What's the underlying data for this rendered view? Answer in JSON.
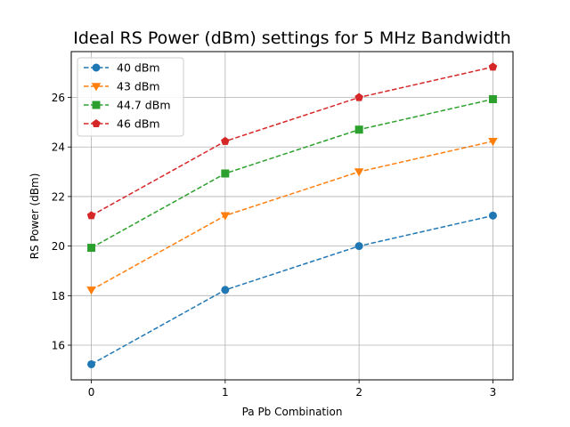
{
  "chart_data": {
    "type": "line",
    "title": "Ideal RS Power (dBm) settings for 5 MHz Bandwidth",
    "xlabel": "Pa Pb Combination",
    "ylabel": "RS Power (dBm)",
    "x": [
      0,
      1,
      2,
      3
    ],
    "xlim": [
      -0.15,
      3.15
    ],
    "ylim": [
      14.6,
      27.85
    ],
    "xticks": [
      0,
      1,
      2,
      3
    ],
    "yticks": [
      16,
      18,
      20,
      22,
      24,
      26
    ],
    "grid": true,
    "legend_position": "upper-left",
    "line_style": "dashed",
    "series": [
      {
        "name": "40 dBm",
        "values": [
          15.23,
          18.23,
          20.0,
          21.23
        ],
        "color": "#1f77b4",
        "marker": "circle"
      },
      {
        "name": "43 dBm",
        "values": [
          18.23,
          21.23,
          23.0,
          24.23
        ],
        "color": "#ff7f0e",
        "marker": "triangle-down"
      },
      {
        "name": "44.7 dBm",
        "values": [
          19.93,
          22.93,
          24.7,
          25.93
        ],
        "color": "#2ca02c",
        "marker": "square"
      },
      {
        "name": "46 dBm",
        "values": [
          21.23,
          24.23,
          26.0,
          27.23
        ],
        "color": "#d62728",
        "marker": "pentagon"
      }
    ]
  }
}
